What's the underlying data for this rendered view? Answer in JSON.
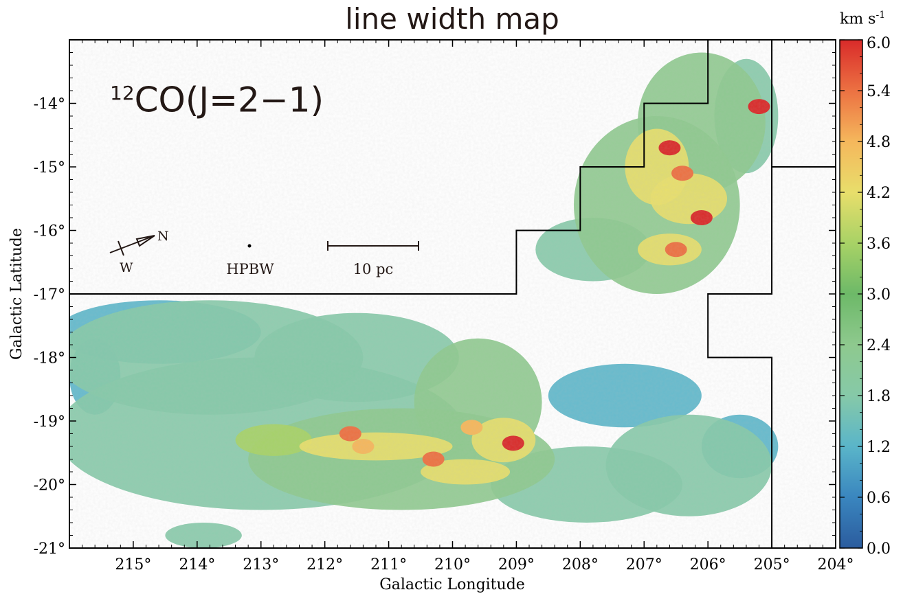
{
  "title": "line width map",
  "colorbar": {
    "unit_prefix": "km s",
    "unit_exponent": "-1",
    "range": [
      0.0,
      6.0
    ],
    "ticks": [
      "0.0",
      "0.6",
      "1.2",
      "1.8",
      "2.4",
      "3.0",
      "3.6",
      "4.2",
      "4.8",
      "5.4",
      "6.0"
    ],
    "colors": [
      "#2b5c9e",
      "#3a86bf",
      "#5ab5c9",
      "#86c9a8",
      "#8ec98e",
      "#6db968",
      "#a8d266",
      "#e8de6b",
      "#f5b75c",
      "#ec7142",
      "#d92b2a"
    ]
  },
  "map_label": {
    "superscript": "12",
    "text": "CO(J=2−1)"
  },
  "markers": {
    "north": "N",
    "west": "W",
    "beam": "HPBW",
    "scale": "10 pc"
  },
  "chart_data": {
    "type": "heatmap",
    "title": "line width map",
    "xlabel": "Galactic Longitude",
    "ylabel": "Galactic Latitude",
    "xlim": [
      216,
      204
    ],
    "ylim": [
      -21,
      -13
    ],
    "x_direction": "decreasing",
    "x_ticks": [
      {
        "value": 215,
        "label": "215°"
      },
      {
        "value": 214,
        "label": "214°"
      },
      {
        "value": 213,
        "label": "213°"
      },
      {
        "value": 212,
        "label": "212°"
      },
      {
        "value": 211,
        "label": "211°"
      },
      {
        "value": 210,
        "label": "210°"
      },
      {
        "value": 209,
        "label": "209°"
      },
      {
        "value": 208,
        "label": "208°"
      },
      {
        "value": 207,
        "label": "207°"
      },
      {
        "value": 206,
        "label": "206°"
      },
      {
        "value": 205,
        "label": "205°"
      },
      {
        "value": 204,
        "label": "204°"
      }
    ],
    "y_ticks": [
      {
        "value": -14,
        "label": "-14°"
      },
      {
        "value": -15,
        "label": "-15°"
      },
      {
        "value": -16,
        "label": "-16°"
      },
      {
        "value": -17,
        "label": "-17°"
      },
      {
        "value": -18,
        "label": "-18°"
      },
      {
        "value": -19,
        "label": "-19°"
      },
      {
        "value": -20,
        "label": "-20°"
      },
      {
        "value": -21,
        "label": "-21°"
      }
    ],
    "colorbar_range": [
      0.0,
      6.0
    ],
    "survey_boundary": [
      [
        216,
        -17
      ],
      [
        209,
        -17
      ],
      [
        209,
        -16
      ],
      [
        208,
        -16
      ],
      [
        208,
        -15
      ],
      [
        207,
        -15
      ],
      [
        207,
        -14
      ],
      [
        206,
        -14
      ],
      [
        206,
        -13
      ],
      [
        205,
        -13
      ],
      [
        205,
        -15
      ],
      [
        204,
        -15
      ],
      [
        205,
        -15
      ],
      [
        205,
        -17
      ],
      [
        206,
        -17
      ],
      [
        206,
        -18
      ],
      [
        205,
        -18
      ],
      [
        205,
        -21
      ]
    ],
    "emission_regions": [
      {
        "l": 213.0,
        "b": -19.2,
        "rl": 3.2,
        "rb": 1.2,
        "value": 1.9
      },
      {
        "l": 210.8,
        "b": -19.6,
        "rl": 2.4,
        "rb": 0.8,
        "value": 2.6
      },
      {
        "l": 213.8,
        "b": -18.0,
        "rl": 2.4,
        "rb": 0.9,
        "value": 1.5
      },
      {
        "l": 214.6,
        "b": -17.6,
        "rl": 1.6,
        "rb": 0.5,
        "value": 1.4
      },
      {
        "l": 211.5,
        "b": -18.0,
        "rl": 1.6,
        "rb": 0.7,
        "value": 1.6
      },
      {
        "l": 209.6,
        "b": -18.7,
        "rl": 1.0,
        "rb": 1.0,
        "value": 2.2
      },
      {
        "l": 207.9,
        "b": -20.0,
        "rl": 1.5,
        "rb": 0.6,
        "value": 1.8
      },
      {
        "l": 206.3,
        "b": -19.7,
        "rl": 1.3,
        "rb": 0.8,
        "value": 1.6
      },
      {
        "l": 205.5,
        "b": -19.4,
        "rl": 0.6,
        "rb": 0.5,
        "value": 1.4
      },
      {
        "l": 207.3,
        "b": -18.6,
        "rl": 1.2,
        "rb": 0.5,
        "value": 1.4
      },
      {
        "l": 213.9,
        "b": -20.8,
        "rl": 0.6,
        "rb": 0.2,
        "value": 1.6
      },
      {
        "l": 215.6,
        "b": -18.3,
        "rl": 0.4,
        "rb": 0.6,
        "value": 1.2
      },
      {
        "l": 206.8,
        "b": -15.6,
        "rl": 1.3,
        "rb": 1.4,
        "value": 2.6
      },
      {
        "l": 206.1,
        "b": -14.3,
        "rl": 1.0,
        "rb": 1.1,
        "value": 2.4
      },
      {
        "l": 207.8,
        "b": -16.3,
        "rl": 0.9,
        "rb": 0.5,
        "value": 1.8
      },
      {
        "l": 205.4,
        "b": -14.2,
        "rl": 0.5,
        "rb": 0.9,
        "value": 1.9
      },
      {
        "l": 206.3,
        "b": -15.5,
        "rl": 0.6,
        "rb": 0.4,
        "value": 4.2
      },
      {
        "l": 206.8,
        "b": -15.0,
        "rl": 0.5,
        "rb": 0.6,
        "value": 3.9
      },
      {
        "l": 211.2,
        "b": -19.4,
        "rl": 1.2,
        "rb": 0.22,
        "value": 4.0
      },
      {
        "l": 212.8,
        "b": -19.3,
        "rl": 0.6,
        "rb": 0.25,
        "value": 3.8
      },
      {
        "l": 209.2,
        "b": -19.3,
        "rl": 0.5,
        "rb": 0.35,
        "value": 4.4
      },
      {
        "l": 209.8,
        "b": -19.8,
        "rl": 0.7,
        "rb": 0.2,
        "value": 4.2
      },
      {
        "l": 206.6,
        "b": -16.3,
        "rl": 0.5,
        "rb": 0.25,
        "value": 4.4
      }
    ],
    "peaks": [
      {
        "l": 209.05,
        "b": -19.35,
        "value": 5.9
      },
      {
        "l": 206.1,
        "b": -15.8,
        "value": 5.9
      },
      {
        "l": 206.5,
        "b": -16.3,
        "value": 5.6
      },
      {
        "l": 206.6,
        "b": -14.7,
        "value": 5.7
      },
      {
        "l": 205.2,
        "b": -14.05,
        "value": 5.8
      },
      {
        "l": 206.4,
        "b": -15.1,
        "value": 5.2
      },
      {
        "l": 211.6,
        "b": -19.2,
        "value": 5.3
      },
      {
        "l": 210.3,
        "b": -19.6,
        "value": 5.2
      },
      {
        "l": 211.4,
        "b": -19.4,
        "value": 5.0
      },
      {
        "l": 209.7,
        "b": -19.1,
        "value": 4.9
      }
    ]
  }
}
